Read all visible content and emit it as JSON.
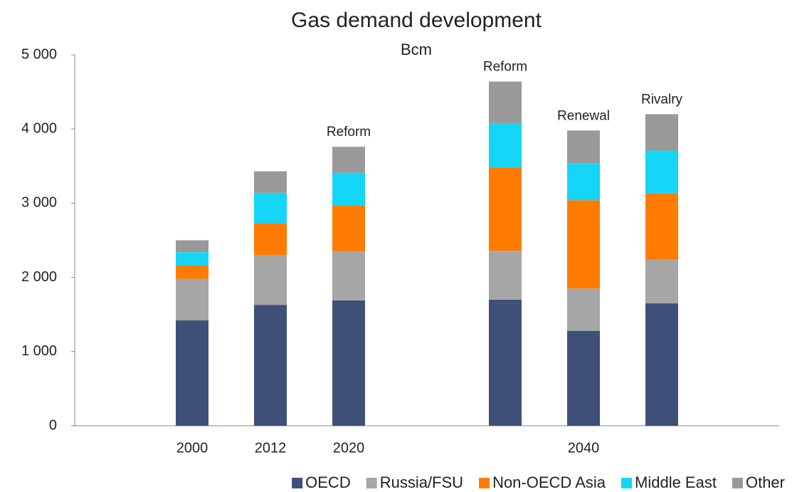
{
  "chart_data": {
    "type": "stacked_bar",
    "title": "Gas demand development",
    "subtitle": "Bcm",
    "categories": [
      null,
      "2000",
      "2012",
      "2020",
      null,
      null,
      "2040",
      null,
      null
    ],
    "annotations": [
      null,
      null,
      null,
      "Reform",
      null,
      "Reform",
      "Renewal",
      "Rivalry",
      null
    ],
    "series": [
      {
        "name": "OECD",
        "color": "#3f5078",
        "values": [
          null,
          1420,
          1630,
          1690,
          null,
          1700,
          1280,
          1650,
          null
        ]
      },
      {
        "name": "Russia/FSU",
        "color": "#a6a6a6",
        "values": [
          null,
          560,
          670,
          660,
          null,
          660,
          570,
          590,
          null
        ]
      },
      {
        "name": "Non-OECD Asia",
        "color": "#ff7c00",
        "values": [
          null,
          180,
          430,
          620,
          null,
          1120,
          1190,
          890,
          null
        ]
      },
      {
        "name": "Middle East",
        "color": "#15d5f6",
        "values": [
          null,
          180,
          410,
          440,
          null,
          600,
          500,
          580,
          null
        ]
      },
      {
        "name": "Other",
        "color": "#999999",
        "values": [
          null,
          160,
          290,
          350,
          null,
          560,
          440,
          490,
          null
        ]
      }
    ],
    "ylim": [
      0,
      5000
    ],
    "yticks": [
      0,
      {
        "value": 1000,
        "label": "1 000"
      },
      {
        "value": 2000,
        "label": "2 000"
      },
      {
        "value": 3000,
        "label": "3 000"
      },
      {
        "value": 4000,
        "label": "4 000"
      },
      {
        "value": 5000,
        "label": "5 000"
      }
    ],
    "legend": "bottom"
  }
}
